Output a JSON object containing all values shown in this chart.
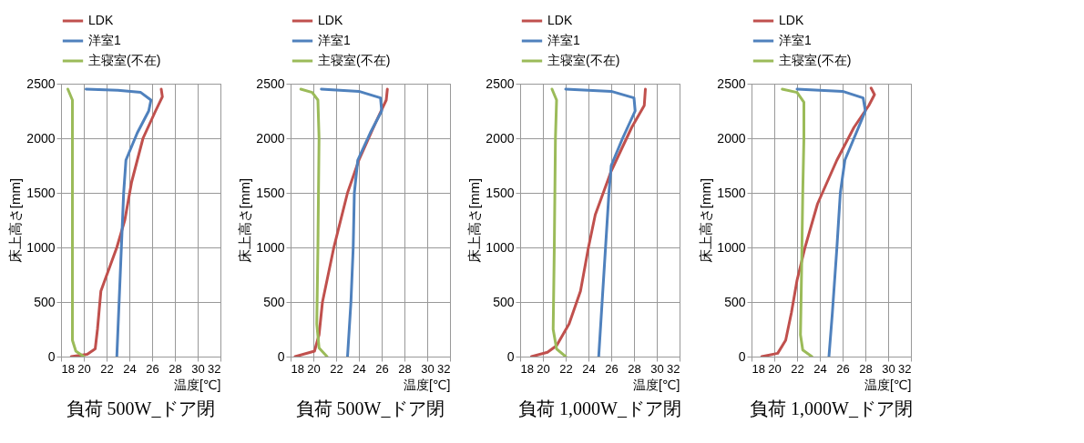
{
  "chart_data": [
    {
      "type": "line",
      "title": "負荷 500W_ドア閉",
      "xlabel": "温度[℃]",
      "ylabel": "床上高さ[mm]",
      "xlim": [
        18,
        32
      ],
      "xticks": [
        18,
        20,
        22,
        24,
        26,
        28,
        30,
        32
      ],
      "ylim": [
        0,
        2500
      ],
      "yticks": [
        0,
        500,
        1000,
        1500,
        2000,
        2500
      ],
      "grid": true,
      "legend": "top",
      "series": [
        {
          "name": "LDK",
          "color": "#c0504d",
          "x": [
            18.9,
            20.3,
            21.0,
            21.2,
            21.5,
            22.9,
            23.6,
            24.2,
            25.2,
            26.3,
            26.9,
            26.8
          ],
          "values": [
            0,
            20,
            70,
            250,
            600,
            1000,
            1250,
            1600,
            2000,
            2250,
            2380,
            2450
          ]
        },
        {
          "name": "洋室1",
          "color": "#4f81bd",
          "x": [
            22.9,
            23.1,
            23.3,
            23.5,
            23.7,
            24.7,
            25.7,
            25.9,
            25.0,
            23.0,
            20.2
          ],
          "values": [
            0,
            500,
            1000,
            1500,
            1800,
            2050,
            2250,
            2350,
            2420,
            2440,
            2450
          ]
        },
        {
          "name": "主寝室(不在)",
          "color": "#9bbb59",
          "x": [
            20.0,
            19.3,
            19.0,
            19.0,
            19.0,
            19.0,
            18.6
          ],
          "values": [
            0,
            50,
            150,
            1000,
            2000,
            2350,
            2450
          ]
        }
      ]
    },
    {
      "type": "line",
      "title": "負荷 500W_ドア閉",
      "xlabel": "温度[℃]",
      "ylabel": "床上高さ[mm]",
      "xlim": [
        18,
        32
      ],
      "xticks": [
        18,
        20,
        22,
        24,
        26,
        28,
        30,
        32
      ],
      "ylim": [
        0,
        2500
      ],
      "yticks": [
        0,
        500,
        1000,
        1500,
        2000,
        2500
      ],
      "grid": true,
      "legend": "top",
      "series": [
        {
          "name": "LDK",
          "color": "#c0504d",
          "x": [
            18.4,
            20.1,
            20.5,
            20.8,
            21.8,
            23.0,
            24.0,
            25.5,
            26.4,
            26.5
          ],
          "values": [
            0,
            50,
            200,
            500,
            1000,
            1500,
            1800,
            2150,
            2350,
            2450
          ]
        },
        {
          "name": "洋室1",
          "color": "#4f81bd",
          "x": [
            23.0,
            23.3,
            23.5,
            23.6,
            23.9,
            25.0,
            26.0,
            25.9,
            24.0,
            20.7
          ],
          "values": [
            0,
            500,
            1000,
            1500,
            1800,
            2050,
            2250,
            2370,
            2430,
            2450
          ]
        },
        {
          "name": "主寝室(不在)",
          "color": "#9bbb59",
          "x": [
            21.2,
            20.5,
            20.3,
            20.4,
            20.5,
            20.4,
            19.9,
            18.9
          ],
          "values": [
            0,
            80,
            300,
            1000,
            2000,
            2350,
            2420,
            2450
          ]
        }
      ]
    },
    {
      "type": "line",
      "title": "負荷 1,000W_ドア閉",
      "xlabel": "温度[℃]",
      "ylabel": "床上高さ[mm]",
      "xlim": [
        18,
        32
      ],
      "xticks": [
        18,
        20,
        22,
        24,
        26,
        28,
        30,
        32
      ],
      "ylim": [
        0,
        2500
      ],
      "yticks": [
        0,
        500,
        1000,
        1500,
        2000,
        2500
      ],
      "grid": true,
      "legend": "top",
      "series": [
        {
          "name": "LDK",
          "color": "#c0504d",
          "x": [
            19.0,
            20.4,
            21.2,
            22.3,
            23.3,
            24.0,
            24.6,
            26.0,
            27.8,
            28.9,
            29.0
          ],
          "values": [
            0,
            40,
            100,
            300,
            600,
            1000,
            1300,
            1700,
            2100,
            2300,
            2450
          ]
        },
        {
          "name": "洋室1",
          "color": "#4f81bd",
          "x": [
            24.9,
            25.2,
            25.5,
            25.8,
            26.0,
            27.0,
            28.1,
            28.0,
            26.0,
            22.0
          ],
          "values": [
            0,
            500,
            1000,
            1500,
            1750,
            2000,
            2250,
            2370,
            2430,
            2450
          ]
        },
        {
          "name": "主寝室(不在)",
          "color": "#9bbb59",
          "x": [
            22.0,
            21.2,
            20.9,
            21.0,
            21.1,
            21.2,
            20.8
          ],
          "values": [
            0,
            70,
            250,
            1000,
            2000,
            2350,
            2450
          ]
        }
      ]
    },
    {
      "type": "line",
      "title": "負荷 1,000W_ドア閉",
      "xlabel": "温度[℃]",
      "ylabel": "床上高さ[mm]",
      "xlim": [
        18,
        32
      ],
      "xticks": [
        18,
        20,
        22,
        24,
        26,
        28,
        30,
        32
      ],
      "ylim": [
        0,
        2500
      ],
      "yticks": [
        0,
        500,
        1000,
        1500,
        2000,
        2500
      ],
      "grid": true,
      "legend": "top",
      "series": [
        {
          "name": "LDK",
          "color": "#c0504d",
          "x": [
            18.9,
            20.3,
            21.0,
            21.5,
            22.0,
            22.7,
            23.8,
            25.5,
            27.0,
            28.3,
            28.8,
            28.5
          ],
          "values": [
            0,
            30,
            150,
            400,
            700,
            1000,
            1400,
            1800,
            2100,
            2300,
            2400,
            2460
          ]
        },
        {
          "name": "洋室1",
          "color": "#4f81bd",
          "x": [
            24.8,
            25.1,
            25.5,
            25.8,
            26.2,
            27.2,
            28.0,
            27.8,
            26.0,
            22.0
          ],
          "values": [
            0,
            400,
            1000,
            1500,
            1800,
            2050,
            2250,
            2370,
            2430,
            2450
          ]
        },
        {
          "name": "主寝室(不在)",
          "color": "#9bbb59",
          "x": [
            23.3,
            22.5,
            22.3,
            22.4,
            22.5,
            22.6,
            22.6,
            22.0,
            20.7
          ],
          "values": [
            0,
            60,
            200,
            800,
            1500,
            2000,
            2330,
            2420,
            2450
          ]
        }
      ]
    }
  ]
}
